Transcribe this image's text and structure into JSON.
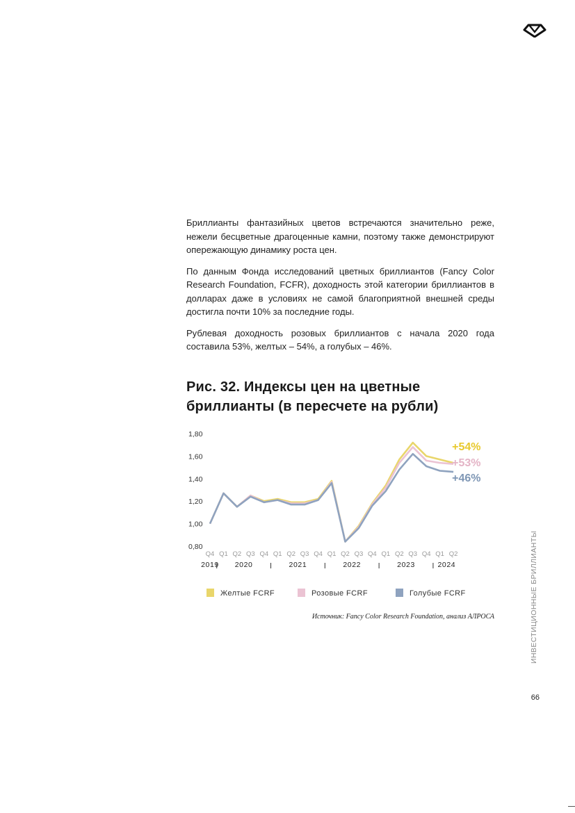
{
  "brand": {
    "logo_icon": "diamond-logo-icon"
  },
  "paragraphs": [
    "Бриллианты фантазийных цветов встречаются значительно реже, нежели бесцветные драгоценные камни, поэтому также демонстрируют опережающую динамику роста цен.",
    "По данным Фонда исследований цветных бриллиантов (Fancy Color Research Foundation, FCFR), доходность этой категории бриллиантов в долларах даже в условиях не самой благоприятной внешней среды достигла почти 10% за последние годы.",
    "Рублевая доходность розовых бриллиантов с начала 2020 года составила 53%, желтых – 54%, а голубых – 46%."
  ],
  "figure": {
    "title": "Рис. 32. Индексы цен на цветные бриллианты (в пересчете на рубли)",
    "source": "Источник: Fancy Color Research Foundation, анализ АЛРОСА"
  },
  "chart_data": {
    "type": "line",
    "title": "Рис. 32. Индексы цен на цветные бриллианты (в пересчете на рубли)",
    "x": [
      "Q4",
      "Q1",
      "Q2",
      "Q3",
      "Q4",
      "Q1",
      "Q2",
      "Q3",
      "Q4",
      "Q1",
      "Q2",
      "Q3",
      "Q4",
      "Q1",
      "Q2",
      "Q3",
      "Q4",
      "Q1",
      "Q2"
    ],
    "years": [
      {
        "label": "2019",
        "start": 0,
        "end": 0
      },
      {
        "label": "2020",
        "start": 1,
        "end": 4
      },
      {
        "label": "2021",
        "start": 5,
        "end": 8
      },
      {
        "label": "2022",
        "start": 9,
        "end": 12
      },
      {
        "label": "2023",
        "start": 13,
        "end": 16
      },
      {
        "label": "2024",
        "start": 17,
        "end": 18
      }
    ],
    "ylim": [
      0.8,
      1.8
    ],
    "yticks": [
      "1,80",
      "1,60",
      "1,40",
      "1,20",
      "1,00",
      "0,80"
    ],
    "ytick_values": [
      1.8,
      1.6,
      1.4,
      1.2,
      1.0,
      0.8
    ],
    "series": [
      {
        "name": "Желтые FCRF",
        "color": "#E9D66B",
        "end_label": "+54%",
        "values": [
          1.0,
          1.27,
          1.15,
          1.25,
          1.2,
          1.22,
          1.19,
          1.19,
          1.22,
          1.38,
          0.84,
          0.98,
          1.18,
          1.34,
          1.57,
          1.72,
          1.6,
          1.57,
          1.54
        ]
      },
      {
        "name": "Розовые FCRF",
        "color": "#EBC3D3",
        "end_label": "+53%",
        "values": [
          1.0,
          1.27,
          1.15,
          1.25,
          1.19,
          1.21,
          1.18,
          1.18,
          1.21,
          1.37,
          0.84,
          0.97,
          1.17,
          1.32,
          1.54,
          1.68,
          1.56,
          1.54,
          1.53
        ]
      },
      {
        "name": "Голубые FCRF",
        "color": "#8FA3BF",
        "end_label": "+46%",
        "values": [
          1.0,
          1.27,
          1.15,
          1.24,
          1.19,
          1.21,
          1.17,
          1.17,
          1.21,
          1.36,
          0.84,
          0.96,
          1.16,
          1.29,
          1.48,
          1.62,
          1.51,
          1.47,
          1.46
        ]
      }
    ],
    "end_label_colors": [
      "#E8C92E",
      "#E4B4C6",
      "#7F97B5"
    ],
    "legend_placement": "bottom",
    "grid": false
  },
  "sidebar": {
    "label": "ИНВЕСТИЦИОННЫЕ БРИЛЛИАНТЫ"
  },
  "footer": {
    "page_number": "66"
  }
}
